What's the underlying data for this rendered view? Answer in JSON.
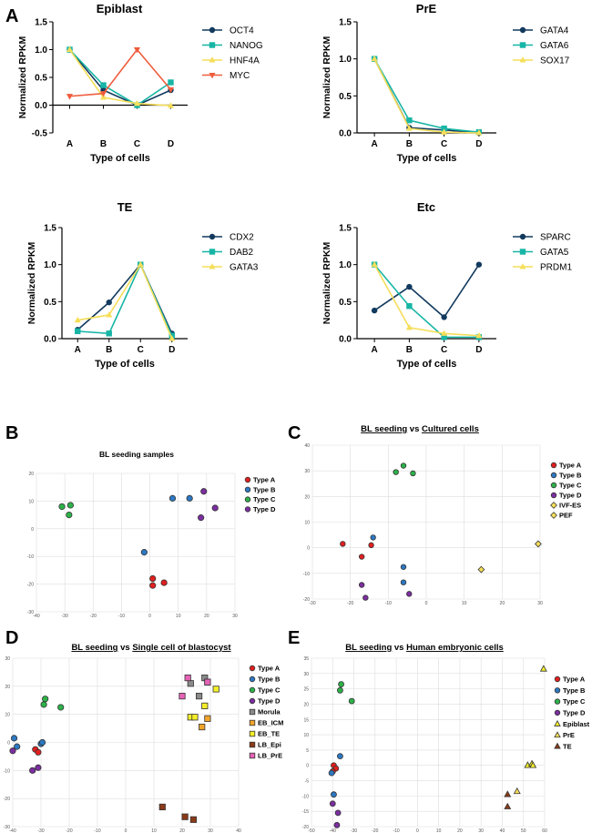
{
  "panel_labels": {
    "A": "A",
    "B": "B",
    "C": "C",
    "D": "D",
    "E": "E"
  },
  "colors": {
    "navy": "#123a5e",
    "teal": "#17b5a5",
    "yellow": "#f5de5a",
    "orange_red": "#ef5c3c",
    "red": "#e11f1f",
    "blue": "#2d78c2",
    "green": "#2db24a",
    "purple": "#7b2ea0",
    "gray": "#8a8a8a",
    "orange": "#f2a52a",
    "lemon": "#f4ee2a",
    "brown": "#8b3a18",
    "pink": "#e563b6",
    "gridline": "#dddddd"
  },
  "chart_data": [
    {
      "id": "A1",
      "type": "line",
      "title": "Epiblast",
      "xlabel": "Type of cells",
      "ylabel": "Normalized RPKM",
      "categories": [
        "A",
        "B",
        "C",
        "D"
      ],
      "ylim": [
        -0.5,
        1.5
      ],
      "yticks": [
        -0.5,
        0.0,
        0.5,
        1.0,
        1.5
      ],
      "ytick_labels": [
        "-0.5",
        "0.0",
        "0.5",
        "1.0",
        "1.5"
      ],
      "series": [
        {
          "name": "OCT4",
          "color": "#123a5e",
          "marker": "circle",
          "values": [
            1.0,
            0.27,
            0.0,
            0.27
          ]
        },
        {
          "name": "NANOG",
          "color": "#17b5a5",
          "marker": "square",
          "values": [
            1.0,
            0.36,
            0.0,
            0.41
          ]
        },
        {
          "name": "HNF4A",
          "color": "#f5de5a",
          "marker": "triangle-up",
          "values": [
            1.0,
            0.14,
            0.03,
            -0.01
          ]
        },
        {
          "name": "MYC",
          "color": "#ef5c3c",
          "marker": "triangle-down",
          "values": [
            0.16,
            0.21,
            1.0,
            0.28
          ]
        }
      ]
    },
    {
      "id": "A2",
      "type": "line",
      "title": "PrE",
      "xlabel": "Type of cells",
      "ylabel": "Normalized RPKM",
      "categories": [
        "A",
        "B",
        "C",
        "D"
      ],
      "ylim": [
        0,
        1.5
      ],
      "yticks": [
        0.0,
        0.5,
        1.0,
        1.5
      ],
      "ytick_labels": [
        "0.0",
        "0.5",
        "1.0",
        "1.5"
      ],
      "series": [
        {
          "name": "GATA4",
          "color": "#123a5e",
          "marker": "circle",
          "values": [
            1.0,
            0.07,
            0.04,
            0.0
          ]
        },
        {
          "name": "GATA6",
          "color": "#17b5a5",
          "marker": "square",
          "values": [
            1.0,
            0.17,
            0.06,
            0.01
          ]
        },
        {
          "name": "SOX17",
          "color": "#f5de5a",
          "marker": "triangle-up",
          "values": [
            1.0,
            0.06,
            0.01,
            0.0
          ]
        }
      ]
    },
    {
      "id": "A3",
      "type": "line",
      "title": "TE",
      "xlabel": "Type of cells",
      "ylabel": "Normalized RPKM",
      "categories": [
        "A",
        "B",
        "C",
        "D"
      ],
      "ylim": [
        0,
        1.5
      ],
      "yticks": [
        0.0,
        0.5,
        1.0,
        1.5
      ],
      "ytick_labels": [
        "0.0",
        "0.5",
        "1.0",
        "1.5"
      ],
      "series": [
        {
          "name": "CDX2",
          "color": "#123a5e",
          "marker": "circle",
          "values": [
            0.12,
            0.49,
            1.0,
            0.07
          ]
        },
        {
          "name": "DAB2",
          "color": "#17b5a5",
          "marker": "square",
          "values": [
            0.1,
            0.07,
            1.0,
            0.04
          ]
        },
        {
          "name": "GATA3",
          "color": "#f5de5a",
          "marker": "triangle-up",
          "values": [
            0.25,
            0.32,
            1.0,
            0.0
          ]
        }
      ]
    },
    {
      "id": "A4",
      "type": "line",
      "title": "Etc",
      "xlabel": "Type of cells",
      "ylabel": "Normalized RPKM",
      "categories": [
        "A",
        "B",
        "C",
        "D"
      ],
      "ylim": [
        0,
        1.5
      ],
      "yticks": [
        0.0,
        0.5,
        1.0,
        1.5
      ],
      "ytick_labels": [
        "0.0",
        "0.5",
        "1.0",
        "1.5"
      ],
      "series": [
        {
          "name": "SPARC",
          "color": "#123a5e",
          "marker": "circle",
          "values": [
            0.38,
            0.7,
            0.29,
            1.0
          ]
        },
        {
          "name": "GATA5",
          "color": "#17b5a5",
          "marker": "square",
          "values": [
            1.0,
            0.44,
            0.02,
            0.02
          ]
        },
        {
          "name": "PRDM1",
          "color": "#f5de5a",
          "marker": "triangle-up",
          "values": [
            1.0,
            0.15,
            0.07,
            0.04
          ]
        }
      ]
    },
    {
      "id": "B",
      "type": "scatter",
      "title": "BL seeding samples",
      "xlim": [
        -40,
        30
      ],
      "ylim": [
        -30,
        20
      ],
      "xticks": [
        -40,
        -30,
        -20,
        -10,
        0,
        10,
        20,
        30
      ],
      "yticks": [
        -30,
        -20,
        -10,
        0,
        10,
        20
      ],
      "xtick_labels": [
        "-40",
        "-30",
        "-20",
        "-10",
        "0",
        "10",
        "20",
        "30"
      ],
      "ytick_labels": [
        "-30",
        "-20",
        "-10",
        "0",
        "10",
        "20"
      ],
      "series": [
        {
          "name": "Type A",
          "color": "#e11f1f",
          "marker": "circle",
          "points": [
            [
              1,
              -18
            ],
            [
              1,
              -20.5
            ],
            [
              5,
              -19.5
            ]
          ]
        },
        {
          "name": "Type B",
          "color": "#2d78c2",
          "marker": "circle",
          "points": [
            [
              -2,
              -8.5
            ],
            [
              8,
              11
            ],
            [
              14,
              11
            ]
          ]
        },
        {
          "name": "Type C",
          "color": "#2db24a",
          "marker": "circle",
          "points": [
            [
              -31,
              8
            ],
            [
              -28,
              8.5
            ],
            [
              -28.5,
              5
            ]
          ]
        },
        {
          "name": "Type D",
          "color": "#7b2ea0",
          "marker": "circle",
          "points": [
            [
              19,
              13.5
            ],
            [
              23,
              7.5
            ],
            [
              18,
              4
            ]
          ]
        }
      ]
    },
    {
      "id": "C",
      "type": "scatter",
      "title_parts": [
        {
          "text": "BL seeding",
          "underline": true
        },
        {
          "text": " vs ",
          "underline": false
        },
        {
          "text": "Cultured cells",
          "underline": true
        }
      ],
      "xlim": [
        -30,
        30
      ],
      "ylim": [
        -20,
        40
      ],
      "xticks": [
        -30,
        -20,
        -10,
        0,
        10,
        20,
        30
      ],
      "yticks": [
        -20,
        -10,
        0,
        10,
        20,
        30,
        40
      ],
      "xtick_labels": [
        "-30",
        "-20",
        "-10",
        "0",
        "10",
        "20",
        "30"
      ],
      "ytick_labels": [
        "-20",
        "-10",
        "0",
        "10",
        "20",
        "30",
        "40"
      ],
      "series": [
        {
          "name": "Type A",
          "color": "#e11f1f",
          "marker": "circle",
          "points": [
            [
              -22,
              1.5
            ],
            [
              -17,
              -3.5
            ],
            [
              -14.5,
              1
            ]
          ]
        },
        {
          "name": "Type B",
          "color": "#2d78c2",
          "marker": "circle",
          "points": [
            [
              -14,
              4
            ],
            [
              -6,
              -7.5
            ],
            [
              -6,
              -13.5
            ]
          ]
        },
        {
          "name": "Type C",
          "color": "#2db24a",
          "marker": "circle",
          "points": [
            [
              -8,
              29.5
            ],
            [
              -6,
              32
            ],
            [
              -3.5,
              29
            ]
          ]
        },
        {
          "name": "Type D",
          "color": "#7b2ea0",
          "marker": "circle",
          "points": [
            [
              -17,
              -14.5
            ],
            [
              -16,
              -19.5
            ],
            [
              -4.5,
              -18
            ]
          ]
        },
        {
          "name": "IVF-ES",
          "color": "#f5de5a",
          "marker": "diamond",
          "points": [
            [
              29.5,
              1.5
            ]
          ]
        },
        {
          "name": "PEF",
          "color": "#f5de5a",
          "marker": "diamond",
          "points": [
            [
              14.5,
              -8.5
            ]
          ]
        }
      ]
    },
    {
      "id": "D",
      "type": "scatter",
      "title_parts": [
        {
          "text": "BL seeding",
          "underline": true
        },
        {
          "text": " vs ",
          "underline": false
        },
        {
          "text": "Single cell of blastocyst",
          "underline": true
        }
      ],
      "xlim": [
        -40,
        40
      ],
      "ylim": [
        -30,
        30
      ],
      "xticks": [
        -40,
        -30,
        -20,
        -10,
        0,
        10,
        20,
        30,
        40
      ],
      "yticks": [
        -30,
        -20,
        -10,
        0,
        10,
        20,
        30
      ],
      "xtick_labels": [
        "-40",
        "-30",
        "-20",
        "-10",
        "0",
        "10",
        "20",
        "30",
        "40"
      ],
      "ytick_labels": [
        "-30",
        "-20",
        "-10",
        "0",
        "10",
        "20",
        "30"
      ],
      "series": [
        {
          "name": "Type A",
          "color": "#e11f1f",
          "marker": "circle",
          "points": [
            [
              -32,
              -2.5
            ],
            [
              -31,
              -3.5
            ]
          ]
        },
        {
          "name": "Type B",
          "color": "#2d78c2",
          "marker": "circle",
          "points": [
            [
              -39.5,
              1.5
            ],
            [
              -38.5,
              -1.5
            ],
            [
              -30,
              -0.5
            ],
            [
              -29.5,
              0
            ]
          ]
        },
        {
          "name": "Type C",
          "color": "#2db24a",
          "marker": "circle",
          "points": [
            [
              -28.5,
              15.5
            ],
            [
              -29,
              13.5
            ],
            [
              -23,
              12.5
            ]
          ]
        },
        {
          "name": "Type D",
          "color": "#7b2ea0",
          "marker": "circle",
          "points": [
            [
              -40,
              -3
            ],
            [
              -33,
              -10
            ],
            [
              -31,
              -9
            ]
          ]
        },
        {
          "name": "Morula",
          "color": "#8a8a8a",
          "marker": "square",
          "points": [
            [
              23,
              21
            ],
            [
              26,
              16.5
            ],
            [
              28,
              23
            ],
            [
              29,
              21.5
            ]
          ]
        },
        {
          "name": "EB_ICM",
          "color": "#f2a52a",
          "marker": "square",
          "points": [
            [
              29,
              8.5
            ],
            [
              27,
              5.5
            ]
          ]
        },
        {
          "name": "EB_TE",
          "color": "#f4ee2a",
          "marker": "square",
          "points": [
            [
              23,
              9
            ],
            [
              24.5,
              9
            ],
            [
              28,
              13
            ],
            [
              32,
              19
            ]
          ]
        },
        {
          "name": "LB_Epi",
          "color": "#8b3a18",
          "marker": "square",
          "points": [
            [
              13,
              -23
            ],
            [
              21,
              -26.5
            ],
            [
              24,
              -27.5
            ]
          ]
        },
        {
          "name": "LB_PrE",
          "color": "#e563b6",
          "marker": "square",
          "points": [
            [
              22,
              23
            ],
            [
              20,
              16.5
            ],
            [
              29,
              21.5
            ]
          ]
        }
      ]
    },
    {
      "id": "E",
      "type": "scatter",
      "title_parts": [
        {
          "text": "BL seeding",
          "underline": true
        },
        {
          "text": " vs ",
          "underline": false
        },
        {
          "text": "Human embryonic cells",
          "underline": true
        }
      ],
      "xlim": [
        -50,
        60
      ],
      "ylim": [
        -20,
        35
      ],
      "xticks": [
        -50,
        -40,
        -30,
        -20,
        -10,
        0,
        10,
        20,
        30,
        40,
        50,
        60
      ],
      "yticks": [
        -20,
        -15,
        -10,
        -5,
        0,
        5,
        10,
        15,
        20,
        25,
        30,
        35
      ],
      "xtick_labels": [
        "-50",
        "-40",
        "-30",
        "-20",
        "-10",
        "0",
        "10",
        "20",
        "30",
        "40",
        "50",
        "60"
      ],
      "ytick_labels": [
        "-20",
        "-15",
        "-10",
        "-5",
        "0",
        "5",
        "10",
        "15",
        "20",
        "25",
        "30",
        "35"
      ],
      "series": [
        {
          "name": "Type A",
          "color": "#e11f1f",
          "marker": "circle",
          "points": [
            [
              -39.5,
              0
            ],
            [
              -38.5,
              -1
            ],
            [
              -40,
              -2
            ]
          ]
        },
        {
          "name": "Type B",
          "color": "#2d78c2",
          "marker": "circle",
          "points": [
            [
              -40.5,
              -2.5
            ],
            [
              -36.5,
              3
            ],
            [
              -39.5,
              -9.5
            ]
          ]
        },
        {
          "name": "Type C",
          "color": "#2db24a",
          "marker": "circle",
          "points": [
            [
              -36,
              26.5
            ],
            [
              -36.5,
              24.5
            ],
            [
              -31,
              21
            ]
          ]
        },
        {
          "name": "Type D",
          "color": "#7b2ea0",
          "marker": "circle",
          "points": [
            [
              -40,
              -12.5
            ],
            [
              -37.5,
              -15.5
            ],
            [
              -38,
              -19.5
            ]
          ]
        },
        {
          "name": "Epiblast",
          "color": "#f4ee2a",
          "marker": "triangle-up",
          "points": [
            [
              52,
              0
            ],
            [
              54,
              0.5
            ],
            [
              54.5,
              0
            ],
            [
              59.5,
              31.5
            ]
          ]
        },
        {
          "name": "PrE",
          "color": "#f5de5a",
          "marker": "triangle-up",
          "points": [
            [
              47,
              -8.5
            ]
          ]
        },
        {
          "name": "TE",
          "color": "#8b3a18",
          "marker": "triangle-up",
          "points": [
            [
              42.5,
              -9.5
            ],
            [
              42.5,
              -13.5
            ]
          ]
        }
      ]
    }
  ]
}
